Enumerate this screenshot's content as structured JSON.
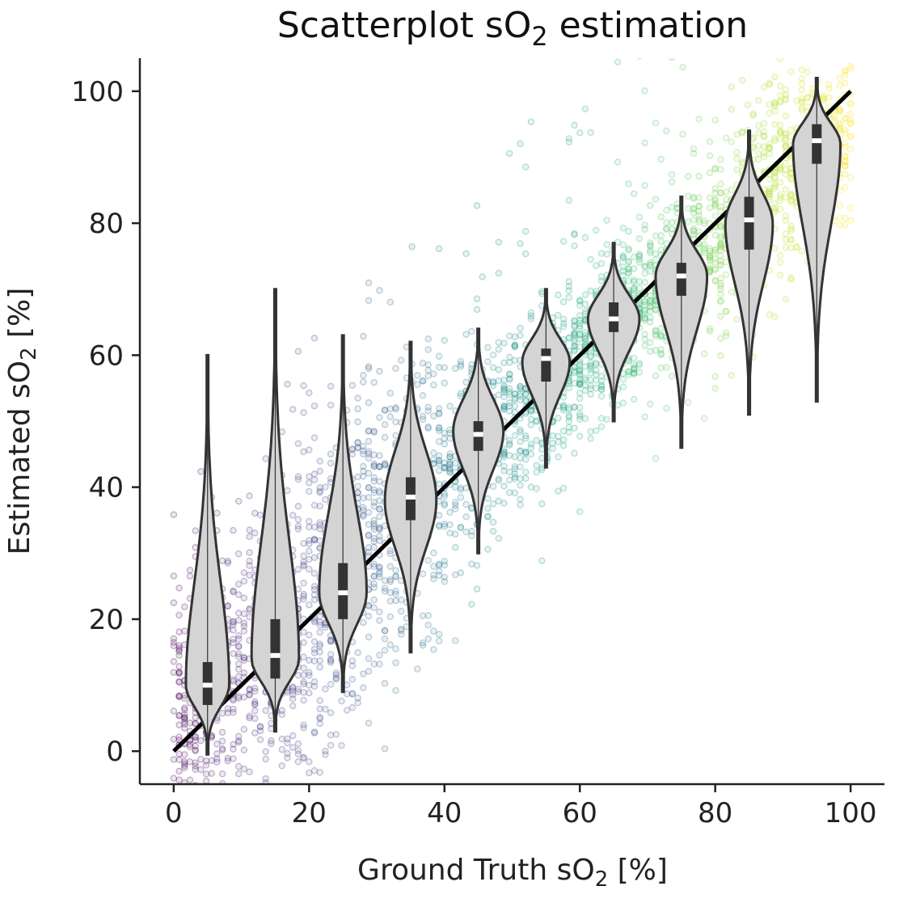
{
  "chart_data": {
    "type": "scatter",
    "title": {
      "main": "Scatterplot sO",
      "sub": "2",
      "tail": " estimation"
    },
    "xlabel": {
      "main": "Ground Truth sO",
      "sub": "2",
      "tail": " [%]"
    },
    "ylabel": {
      "main": "Estimated sO",
      "sub": "2",
      "tail": " [%]"
    },
    "xlim": [
      -5,
      105
    ],
    "ylim": [
      -5,
      105
    ],
    "xticks": [
      0,
      20,
      40,
      60,
      80,
      100
    ],
    "yticks": [
      0,
      20,
      40,
      60,
      80,
      100
    ],
    "xtick_labels": [
      "0",
      "20",
      "40",
      "60",
      "80",
      "100"
    ],
    "ytick_labels": [
      "0",
      "20",
      "40",
      "60",
      "80",
      "100"
    ],
    "identity_line": {
      "from": [
        0,
        0
      ],
      "to": [
        100,
        100
      ],
      "color": "#000000"
    },
    "colormap": "viridis",
    "scatter_trend": [
      {
        "x": 0,
        "y_center": 5,
        "y_spread": 8
      },
      {
        "x": 10,
        "y_center": 13,
        "y_spread": 12
      },
      {
        "x": 20,
        "y_center": 22,
        "y_spread": 13
      },
      {
        "x": 30,
        "y_center": 33,
        "y_spread": 12
      },
      {
        "x": 40,
        "y_center": 42,
        "y_spread": 9
      },
      {
        "x": 50,
        "y_center": 52,
        "y_spread": 6
      },
      {
        "x": 60,
        "y_center": 60,
        "y_spread": 6
      },
      {
        "x": 70,
        "y_center": 68,
        "y_spread": 6
      },
      {
        "x": 80,
        "y_center": 77,
        "y_spread": 7
      },
      {
        "x": 90,
        "y_center": 87,
        "y_spread": 8
      },
      {
        "x": 100,
        "y_center": 95,
        "y_spread": 7
      }
    ],
    "violins": [
      {
        "x": 5,
        "min": -0.5,
        "max": 60,
        "q1": 7,
        "median": 10,
        "q3": 13.5,
        "mode": 10,
        "width": 3.2
      },
      {
        "x": 15,
        "min": 3,
        "max": 70,
        "q1": 11,
        "median": 14.5,
        "q3": 20,
        "mode": 14,
        "width": 3.5
      },
      {
        "x": 25,
        "min": 9,
        "max": 63,
        "q1": 20,
        "median": 24,
        "q3": 28.5,
        "mode": 24,
        "width": 3.5
      },
      {
        "x": 35,
        "min": 15,
        "max": 62,
        "q1": 35,
        "median": 38.5,
        "q3": 41.5,
        "mode": 38,
        "width": 3.8
      },
      {
        "x": 45,
        "min": 30,
        "max": 64,
        "q1": 45.5,
        "median": 48,
        "q3": 50,
        "mode": 48.5,
        "width": 3.7
      },
      {
        "x": 55,
        "min": 43,
        "max": 70,
        "q1": 56,
        "median": 59.5,
        "q3": 61,
        "mode": 59,
        "width": 3.5
      },
      {
        "x": 65,
        "min": 50,
        "max": 77,
        "q1": 63.5,
        "median": 65.5,
        "q3": 68,
        "mode": 65.5,
        "width": 3.8
      },
      {
        "x": 75,
        "min": 46,
        "max": 84,
        "q1": 69,
        "median": 72,
        "q3": 74,
        "mode": 72,
        "width": 3.8
      },
      {
        "x": 85,
        "min": 51,
        "max": 94,
        "q1": 76,
        "median": 80.5,
        "q3": 84,
        "mode": 80,
        "width": 3.5
      },
      {
        "x": 95,
        "min": 53,
        "max": 102,
        "q1": 89,
        "median": 92.5,
        "q3": 95,
        "mode": 92,
        "width": 3.5
      }
    ],
    "violin_fill": "#d4d4d4",
    "violin_edge": "#333333"
  }
}
